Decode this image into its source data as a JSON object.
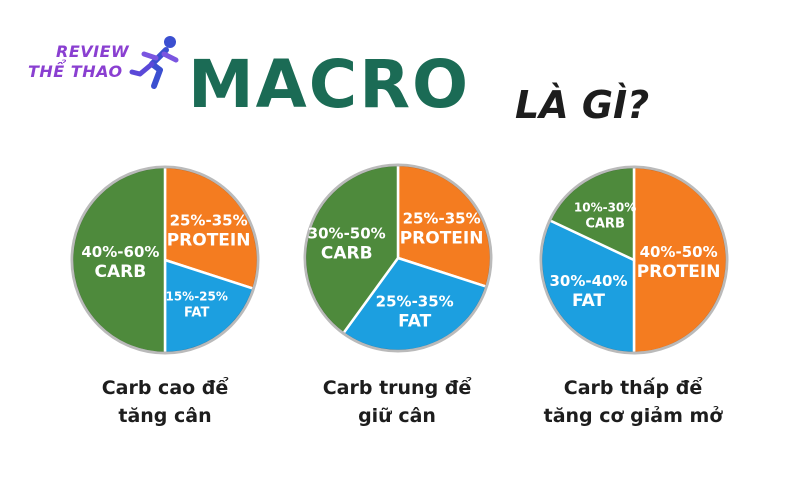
{
  "logo": {
    "line1": "REVIEW",
    "line2": "THỂ THAO"
  },
  "title": {
    "main": "MACRO",
    "sub": "LÀ GÌ?"
  },
  "colors": {
    "carb": "#4e8a3c",
    "protein": "#f47c20",
    "fat": "#1c9fe0",
    "title": "#1b6b55",
    "logo": "#8a3fd1"
  },
  "chart_data": [
    {
      "type": "pie",
      "caption": [
        "Carb cao để",
        "tăng cân"
      ],
      "slices": [
        {
          "name": "PROTEIN",
          "label": "25%-35%",
          "value": 30,
          "color": "#f47c20"
        },
        {
          "name": "FAT",
          "label": "15%-25%",
          "value": 20,
          "color": "#1c9fe0"
        },
        {
          "name": "CARB",
          "label": "40%-60%",
          "value": 50,
          "color": "#4e8a3c"
        }
      ]
    },
    {
      "type": "pie",
      "caption": [
        "Carb trung để",
        "giữ cân"
      ],
      "slices": [
        {
          "name": "PROTEIN",
          "label": "25%-35%",
          "value": 30,
          "color": "#f47c20"
        },
        {
          "name": "FAT",
          "label": "25%-35%",
          "value": 30,
          "color": "#1c9fe0"
        },
        {
          "name": "CARB",
          "label": "30%-50%",
          "value": 40,
          "color": "#4e8a3c"
        }
      ]
    },
    {
      "type": "pie",
      "caption": [
        "Carb thấp để",
        "tăng cơ giảm mở"
      ],
      "slices": [
        {
          "name": "PROTEIN",
          "label": "40%-50%",
          "value": 50,
          "color": "#f47c20"
        },
        {
          "name": "FAT",
          "label": "30%-40%",
          "value": 32,
          "color": "#1c9fe0"
        },
        {
          "name": "CARB",
          "label": "10%-30%",
          "value": 18,
          "color": "#4e8a3c"
        }
      ]
    }
  ]
}
